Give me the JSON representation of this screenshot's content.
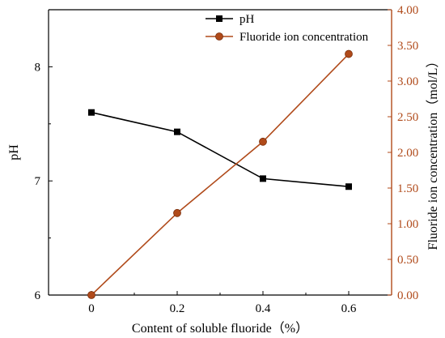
{
  "chart_data": {
    "type": "line",
    "xlabel": "Content of soluble fluoride（%）",
    "ylabel_left": "pH",
    "ylabel_right": "Fluoride ion concentration（mol/L）",
    "x": [
      0,
      0.2,
      0.4,
      0.6
    ],
    "x_ticks": [
      "0",
      "0.2",
      "0.4",
      "0.6"
    ],
    "xlim": [
      -0.1,
      0.7
    ],
    "ylim_left": [
      6,
      8.5
    ],
    "y_ticks_left": [
      "6",
      "7",
      "8"
    ],
    "ylim_right": [
      0,
      4
    ],
    "y_ticks_right": [
      "0.00",
      "0.50",
      "1.00",
      "1.50",
      "2.00",
      "2.50",
      "3.00",
      "3.50",
      "4.00"
    ],
    "legend_position": "top-right",
    "series": [
      {
        "name": "pH",
        "axis": "left",
        "marker": "square",
        "color": "#000000",
        "values": [
          7.6,
          7.43,
          7.02,
          6.95
        ]
      },
      {
        "name": "Fluoride ion concentration",
        "axis": "right",
        "marker": "circle",
        "color": "#b04a1a",
        "values": [
          0.0,
          1.15,
          2.15,
          3.38
        ]
      }
    ]
  }
}
